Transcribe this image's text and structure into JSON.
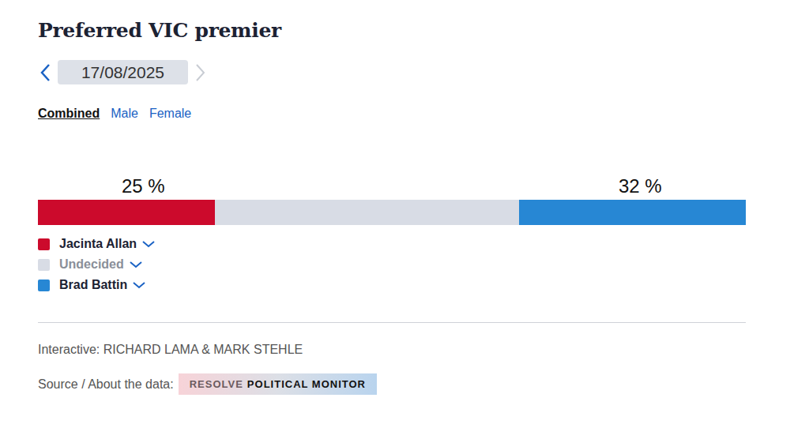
{
  "chart_data": {
    "type": "bar",
    "title": "Preferred VIC premier",
    "orientation": "horizontal",
    "stacked": true,
    "xlim": [
      0,
      100
    ],
    "tick_labels": false,
    "grid": false,
    "legend": "bottom",
    "data_labels": true,
    "series": [
      {
        "name": "Jacinta Allan",
        "color": "#cc0a2c",
        "values": [
          25
        ],
        "value_labels": [
          "25 %"
        ]
      },
      {
        "name": "Undecided",
        "color": "#d8dce5",
        "values": [
          43
        ],
        "value_labels": [
          null
        ]
      },
      {
        "name": "Brad Battin",
        "color": "#2787d4",
        "values": [
          32
        ],
        "value_labels": [
          "32 %"
        ]
      }
    ]
  },
  "page": {
    "date": "17/08/2025",
    "tabs": [
      "Combined",
      "Male",
      "Female"
    ],
    "active_tab": "Combined",
    "credit": "Interactive: RICHARD LAMA & MARK STEHLE",
    "source_label": "Source / About the data:",
    "source_badge": [
      "RESOLVE",
      "POLITICAL MONITOR"
    ]
  }
}
